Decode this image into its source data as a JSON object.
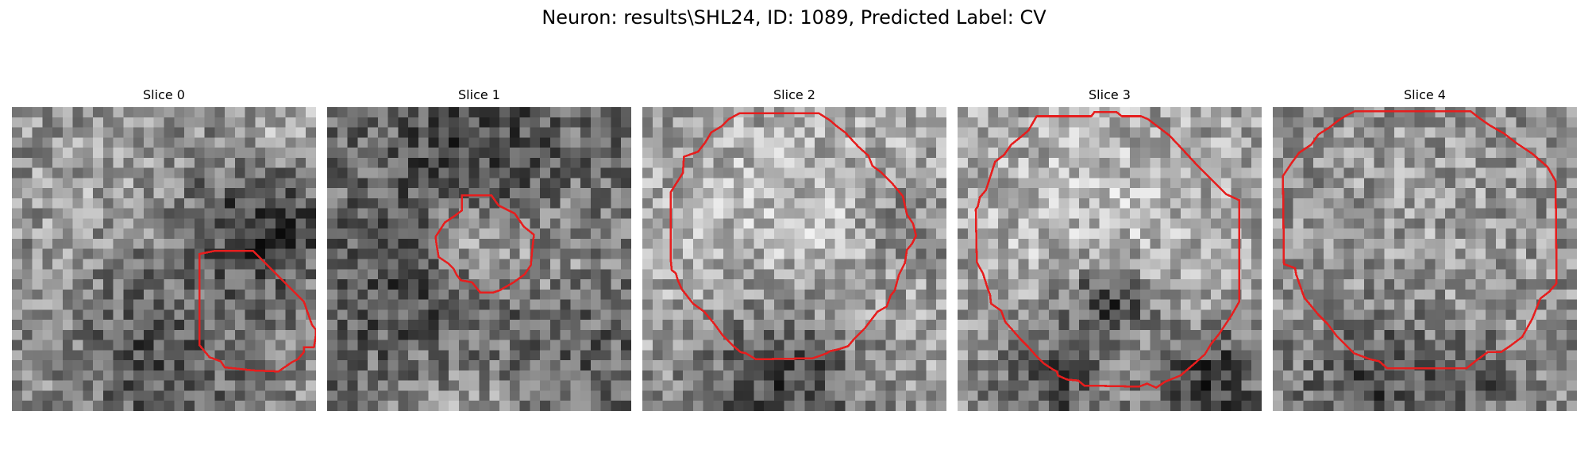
{
  "figure": {
    "title": "Neuron: results\\SHL24, ID: 1089, Predicted Label: CV"
  },
  "slices": [
    {
      "title": "Slice 0"
    },
    {
      "title": "Slice 1"
    },
    {
      "title": "Slice 2"
    },
    {
      "title": "Slice 3"
    },
    {
      "title": "Slice 4"
    }
  ],
  "style": {
    "contour_color": "#e61e1e",
    "colormap": "grayscale"
  }
}
